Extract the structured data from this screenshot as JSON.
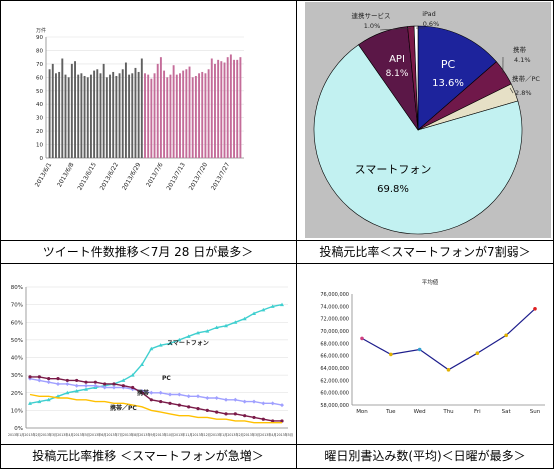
{
  "captions": {
    "top_left": "ツイート件数推移＜7月 28 日が最多＞",
    "top_right": "投稿元比率＜スマートフォンが7割弱＞",
    "bottom_left": "投稿元比率推移 ＜スマートフォンが急増＞",
    "bottom_right": "曜日別書込み数(平均)＜日曜が最多＞"
  },
  "colors": {
    "bar_june": "#606060",
    "bar_july": "#c46c99",
    "pie_pc": "#1d239c",
    "pie_api": "#5b1747",
    "pie_renkei": "#7a1a48",
    "pie_ipad": "#ffffff",
    "pie_keitai": "#70184a",
    "pie_keitai_pc": "#e6e0c6",
    "pie_smartphone": "#c2f1f1",
    "pie_bg": "#c0c0c0",
    "line_smartphone": "#3fcfcf",
    "line_pc": "#a0a0ff",
    "line_keitai": "#7a1a48",
    "line_keitai_pc": "#ffc000",
    "weekday_line": "#1d1d8c"
  },
  "chart_data": [
    {
      "type": "bar",
      "title": "",
      "ylabel": "万件",
      "ylim": [
        0,
        90
      ],
      "yticks": [
        "0",
        "10",
        "20",
        "30",
        "40",
        "50",
        "60",
        "70",
        "80",
        "90"
      ],
      "xtick_labels": [
        "2013/6/1",
        "2013/6/8",
        "2013/6/15",
        "2013/6/22",
        "2013/6/29",
        "2013/7/6",
        "2013/7/13",
        "2013/7/20",
        "2013/7/27"
      ],
      "series": [
        {
          "name": "",
          "period": "2013/6/1–2013/6/30",
          "values": [
            66,
            70,
            63,
            64,
            74,
            62,
            60,
            70,
            72,
            62,
            63,
            61,
            60,
            62,
            65,
            66,
            63,
            70,
            60,
            62,
            64,
            61,
            63,
            66,
            71,
            62,
            63,
            67,
            64,
            74
          ]
        },
        {
          "name": "",
          "period": "2013/7/1–2013/7/31",
          "values": [
            63,
            62,
            59,
            63,
            70,
            75,
            65,
            60,
            62,
            69,
            62,
            63,
            65,
            66,
            68,
            60,
            61,
            63,
            64,
            63,
            66,
            74,
            70,
            73,
            72,
            71,
            75,
            77,
            73,
            73,
            75
          ]
        }
      ]
    },
    {
      "type": "pie",
      "slices": [
        {
          "label": "PC",
          "value": 13.6,
          "display": "13.6%"
        },
        {
          "label": "携帯",
          "value": 4.1,
          "display": "4.1%"
        },
        {
          "label": "携帯／PC",
          "value": 2.8,
          "display": "2.8%"
        },
        {
          "label": "スマートフォン",
          "value": 69.8,
          "display": "69.8%"
        },
        {
          "label": "API",
          "value": 8.1,
          "display": "8.1%"
        },
        {
          "label": "連携サービス",
          "value": 1.0,
          "display": "1.0%"
        },
        {
          "label": "iPad",
          "value": 0.6,
          "display": "0.6%"
        }
      ]
    },
    {
      "type": "line",
      "ylim": [
        0,
        80
      ],
      "yticks": [
        "0%",
        "10%",
        "20%",
        "30%",
        "40%",
        "50%",
        "60%",
        "70%",
        "80%"
      ],
      "xtick_text": "2013年1月2013年2月2013年3月2013年4月2013年5月2013年6月2013年7月2013年8月2013年9月2013年10月2013年11月2013年12月2013年1月2013年2月2013年3月2013年4月2013年5月",
      "series": [
        {
          "name": "スマートフォン",
          "values": [
            14,
            15,
            16,
            18,
            20,
            21,
            22,
            23,
            24,
            25,
            27,
            30,
            36,
            45,
            47,
            48,
            50,
            52,
            54,
            55,
            57,
            58,
            60,
            62,
            65,
            67,
            69,
            70
          ]
        },
        {
          "name": "PC",
          "values": [
            28,
            27,
            26,
            25,
            25,
            24,
            24,
            24,
            23,
            23,
            23,
            22,
            21,
            20,
            20,
            19,
            19,
            18,
            18,
            17,
            17,
            16,
            16,
            15,
            15,
            14,
            14,
            13
          ]
        },
        {
          "name": "携帯",
          "values": [
            29,
            29,
            28,
            28,
            27,
            27,
            26,
            26,
            25,
            25,
            24,
            23,
            20,
            16,
            15,
            14,
            13,
            12,
            11,
            10,
            9,
            8,
            8,
            7,
            6,
            5,
            4,
            4
          ]
        },
        {
          "name": "携帯／PC",
          "values": [
            19,
            18,
            18,
            17,
            17,
            16,
            16,
            15,
            15,
            14,
            14,
            13,
            12,
            10,
            9,
            8,
            7,
            7,
            6,
            6,
            5,
            5,
            4,
            4,
            3,
            3,
            3,
            3
          ]
        }
      ]
    },
    {
      "type": "line",
      "title": "平均値",
      "categories": [
        "Mon",
        "Tue",
        "Wed",
        "Thu",
        "Fri",
        "Sat",
        "Sun"
      ],
      "values": [
        68800000,
        66200000,
        67000000,
        63700000,
        66400000,
        69300000,
        73600000
      ],
      "ylim": [
        58000000,
        76000000
      ],
      "yticks": [
        "58,000,000",
        "60,000,000",
        "62,000,000",
        "64,000,000",
        "66,000,000",
        "68,000,000",
        "70,000,000",
        "72,000,000",
        "74,000,000",
        "76,000,000"
      ]
    }
  ]
}
